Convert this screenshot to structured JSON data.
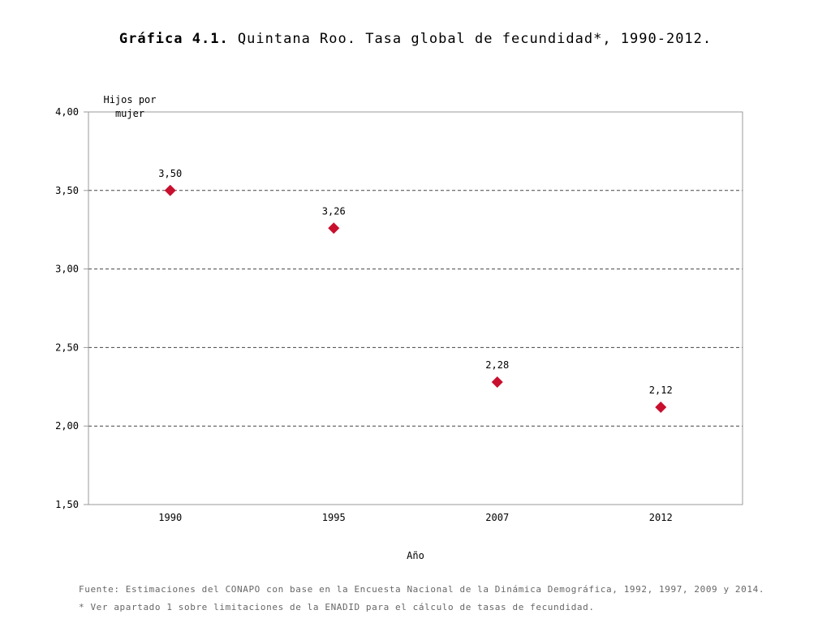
{
  "title": {
    "lead": "Gráfica 4.1.",
    "text": " Quintana Roo. Tasa global de fecundidad*, 1990-2012."
  },
  "chart_data": {
    "type": "scatter",
    "categories": [
      "1990",
      "1995",
      "2007",
      "2012"
    ],
    "values": [
      3.5,
      3.26,
      2.28,
      2.12
    ],
    "data_labels": [
      "3,50",
      "3,26",
      "2,28",
      "2,12"
    ],
    "ylabel": "Hijos por mujer",
    "ylabel_lines": [
      "Hijos por",
      "mujer"
    ],
    "xlabel": "Año",
    "ylim": [
      1.5,
      4.0
    ],
    "yticks": [
      1.5,
      2.0,
      2.5,
      3.0,
      3.5,
      4.0
    ],
    "ytick_labels": [
      "1,50",
      "2,00",
      "2,50",
      "3,00",
      "3,50",
      "4,00"
    ],
    "grid": true,
    "marker": "diamond",
    "marker_color": "#c8102e",
    "legend": "none"
  },
  "footer": {
    "source": "Fuente: Estimaciones del CONAPO con base en la Encuesta Nacional de la Dinámica Demográfica, 1992, 1997, 2009 y 2014.",
    "note": "* Ver apartado 1 sobre limitaciones de la ENADID para el cálculo de tasas de fecundidad."
  }
}
